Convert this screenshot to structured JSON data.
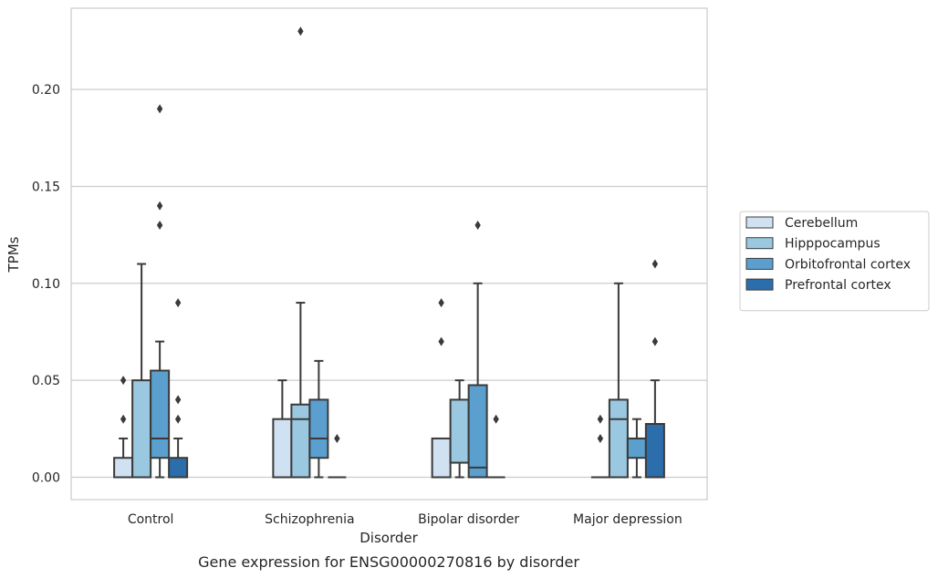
{
  "chart_data": {
    "type": "box",
    "title": "Gene expression for ENSG00000270816 by disorder",
    "xlabel": "Disorder",
    "ylabel": "TPMs",
    "ylim": [
      -0.011,
      0.242
    ],
    "yticks": [
      0.0,
      0.05,
      0.1,
      0.15,
      0.2
    ],
    "ytick_labels": [
      "0.00",
      "0.05",
      "0.10",
      "0.15",
      "0.20"
    ],
    "grid": "horizontal",
    "legend_position": "right",
    "categories": [
      "Control",
      "Schizophrenia",
      "Bipolar disorder",
      "Major depression"
    ],
    "series": [
      {
        "name": "Cerebellum",
        "color": "#d0e1f2",
        "boxes": [
          {
            "low": 0.0,
            "q1": 0.0,
            "median": 0.0,
            "q3": 0.01,
            "high": 0.02,
            "outliers": [
              0.03,
              0.05
            ]
          },
          {
            "low": 0.0,
            "q1": 0.0,
            "median": 0.0,
            "q3": 0.03,
            "high": 0.05,
            "outliers": []
          },
          {
            "low": 0.0,
            "q1": 0.0,
            "median": 0.0,
            "q3": 0.02,
            "high": 0.02,
            "outliers": [
              0.07,
              0.09
            ]
          },
          {
            "low": 0.0,
            "q1": 0.0,
            "median": 0.0,
            "q3": 0.0,
            "high": 0.0,
            "outliers": [
              0.02,
              0.03
            ]
          }
        ]
      },
      {
        "name": "Hipppocampus",
        "color": "#9ac8e0",
        "boxes": [
          {
            "low": 0.0,
            "q1": 0.0,
            "median": 0.0,
            "q3": 0.05,
            "high": 0.11,
            "outliers": []
          },
          {
            "low": 0.0,
            "q1": 0.0,
            "median": 0.03,
            "q3": 0.0375,
            "high": 0.09,
            "outliers": [
              0.23
            ]
          },
          {
            "low": 0.0,
            "q1": 0.0075,
            "median": 0.0075,
            "q3": 0.04,
            "high": 0.05,
            "outliers": []
          },
          {
            "low": 0.0,
            "q1": 0.0,
            "median": 0.03,
            "q3": 0.04,
            "high": 0.1,
            "outliers": []
          }
        ]
      },
      {
        "name": "Orbitofrontal cortex",
        "color": "#5a9fcd",
        "boxes": [
          {
            "low": 0.0,
            "q1": 0.01,
            "median": 0.02,
            "q3": 0.055,
            "high": 0.07,
            "outliers": [
              0.13,
              0.14,
              0.19
            ]
          },
          {
            "low": 0.0,
            "q1": 0.01,
            "median": 0.02,
            "q3": 0.04,
            "high": 0.06,
            "outliers": []
          },
          {
            "low": 0.0,
            "q1": 0.0,
            "median": 0.005,
            "q3": 0.0475,
            "high": 0.1,
            "outliers": [
              0.13
            ]
          },
          {
            "low": 0.0,
            "q1": 0.01,
            "median": 0.02,
            "q3": 0.02,
            "high": 0.03,
            "outliers": []
          }
        ]
      },
      {
        "name": "Prefrontal cortex",
        "color": "#2c6eab",
        "boxes": [
          {
            "low": 0.0,
            "q1": 0.0,
            "median": 0.0,
            "q3": 0.01,
            "high": 0.02,
            "outliers": [
              0.03,
              0.04,
              0.09
            ]
          },
          {
            "low": 0.0,
            "q1": 0.0,
            "median": 0.0,
            "q3": 0.0,
            "high": 0.0,
            "outliers": [
              0.02
            ]
          },
          {
            "low": 0.0,
            "q1": 0.0,
            "median": 0.0,
            "q3": 0.0,
            "high": 0.0,
            "outliers": [
              0.03
            ]
          },
          {
            "low": 0.0,
            "q1": 0.0,
            "median": 0.0,
            "q3": 0.0275,
            "high": 0.05,
            "outliers": [
              0.07,
              0.11
            ]
          }
        ]
      }
    ]
  }
}
